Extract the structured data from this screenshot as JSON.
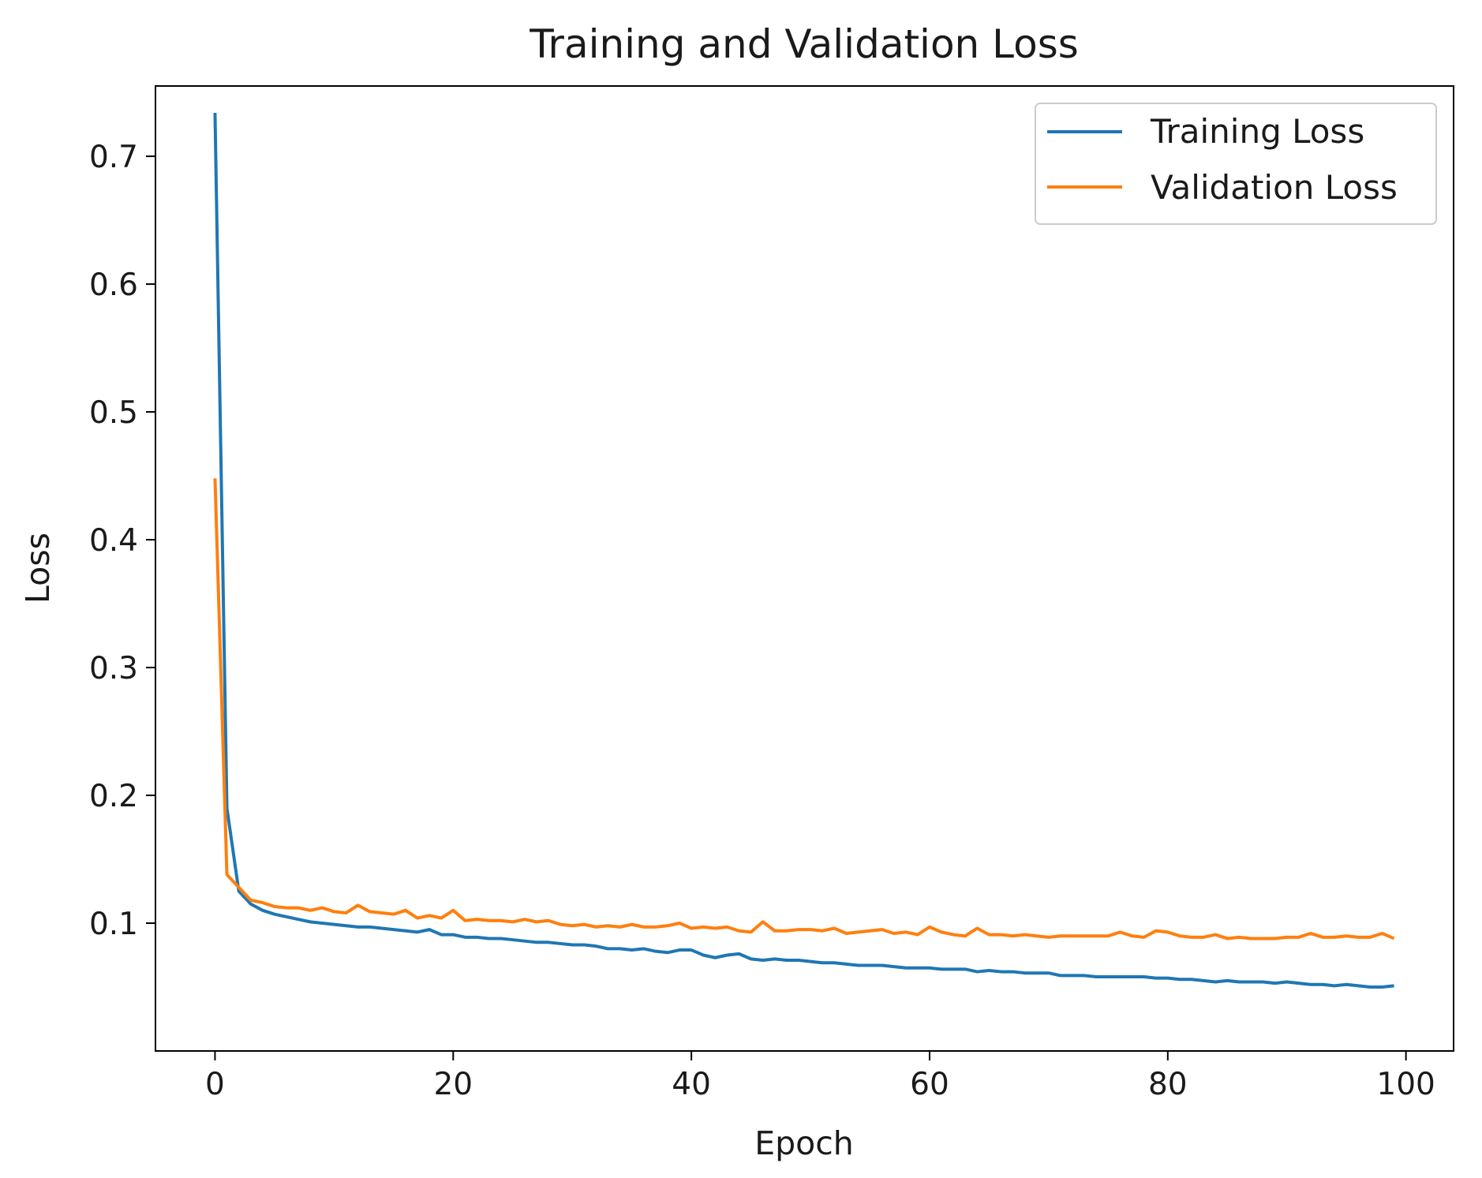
{
  "chart_data": {
    "type": "line",
    "title": "Training and Validation Loss",
    "xlabel": "Epoch",
    "ylabel": "Loss",
    "xlim": [
      -5,
      104
    ],
    "ylim": [
      0.0,
      0.755
    ],
    "xticks": [
      0,
      20,
      40,
      60,
      80,
      100
    ],
    "xtick_labels": [
      "0",
      "20",
      "40",
      "60",
      "80",
      "100"
    ],
    "yticks": [
      0.1,
      0.2,
      0.3,
      0.4,
      0.5,
      0.6,
      0.7
    ],
    "ytick_labels": [
      "0.1",
      "0.2",
      "0.3",
      "0.4",
      "0.5",
      "0.6",
      "0.7"
    ],
    "grid": false,
    "legend_position": "top-right",
    "x": [
      0,
      1,
      2,
      3,
      4,
      5,
      6,
      7,
      8,
      9,
      10,
      11,
      12,
      13,
      14,
      15,
      16,
      17,
      18,
      19,
      20,
      21,
      22,
      23,
      24,
      25,
      26,
      27,
      28,
      29,
      30,
      31,
      32,
      33,
      34,
      35,
      36,
      37,
      38,
      39,
      40,
      41,
      42,
      43,
      44,
      45,
      46,
      47,
      48,
      49,
      50,
      51,
      52,
      53,
      54,
      55,
      56,
      57,
      58,
      59,
      60,
      61,
      62,
      63,
      64,
      65,
      66,
      67,
      68,
      69,
      70,
      71,
      72,
      73,
      74,
      75,
      76,
      77,
      78,
      79,
      80,
      81,
      82,
      83,
      84,
      85,
      86,
      87,
      88,
      89,
      90,
      91,
      92,
      93,
      94,
      95,
      96,
      97,
      98,
      99
    ],
    "series": [
      {
        "name": "Training Loss",
        "color": "#1f77b4",
        "values": [
          0.734,
          0.19,
          0.125,
          0.115,
          0.11,
          0.107,
          0.105,
          0.103,
          0.101,
          0.1,
          0.099,
          0.098,
          0.097,
          0.097,
          0.096,
          0.095,
          0.094,
          0.093,
          0.095,
          0.091,
          0.091,
          0.089,
          0.089,
          0.088,
          0.088,
          0.087,
          0.086,
          0.085,
          0.085,
          0.084,
          0.083,
          0.083,
          0.082,
          0.08,
          0.08,
          0.079,
          0.08,
          0.078,
          0.077,
          0.079,
          0.079,
          0.075,
          0.073,
          0.075,
          0.076,
          0.072,
          0.071,
          0.072,
          0.071,
          0.071,
          0.07,
          0.069,
          0.069,
          0.068,
          0.067,
          0.067,
          0.067,
          0.066,
          0.065,
          0.065,
          0.065,
          0.064,
          0.064,
          0.064,
          0.062,
          0.063,
          0.062,
          0.062,
          0.061,
          0.061,
          0.061,
          0.059,
          0.059,
          0.059,
          0.058,
          0.058,
          0.058,
          0.058,
          0.058,
          0.057,
          0.057,
          0.056,
          0.056,
          0.055,
          0.054,
          0.055,
          0.054,
          0.054,
          0.054,
          0.053,
          0.054,
          0.053,
          0.052,
          0.052,
          0.051,
          0.052,
          0.051,
          0.05,
          0.05,
          0.051
        ]
      },
      {
        "name": "Validation Loss",
        "color": "#ff7f0e",
        "values": [
          0.448,
          0.138,
          0.128,
          0.118,
          0.116,
          0.113,
          0.112,
          0.112,
          0.11,
          0.112,
          0.109,
          0.108,
          0.114,
          0.109,
          0.108,
          0.107,
          0.11,
          0.104,
          0.106,
          0.104,
          0.11,
          0.102,
          0.103,
          0.102,
          0.102,
          0.101,
          0.103,
          0.101,
          0.102,
          0.099,
          0.098,
          0.099,
          0.097,
          0.098,
          0.097,
          0.099,
          0.097,
          0.097,
          0.098,
          0.1,
          0.096,
          0.097,
          0.096,
          0.097,
          0.094,
          0.093,
          0.101,
          0.094,
          0.094,
          0.095,
          0.095,
          0.094,
          0.096,
          0.092,
          0.093,
          0.094,
          0.095,
          0.092,
          0.093,
          0.091,
          0.097,
          0.093,
          0.091,
          0.09,
          0.096,
          0.091,
          0.091,
          0.09,
          0.091,
          0.09,
          0.089,
          0.09,
          0.09,
          0.09,
          0.09,
          0.09,
          0.093,
          0.09,
          0.089,
          0.094,
          0.093,
          0.09,
          0.089,
          0.089,
          0.091,
          0.088,
          0.089,
          0.088,
          0.088,
          0.088,
          0.089,
          0.089,
          0.092,
          0.089,
          0.089,
          0.09,
          0.089,
          0.089,
          0.092,
          0.088
        ]
      }
    ]
  }
}
